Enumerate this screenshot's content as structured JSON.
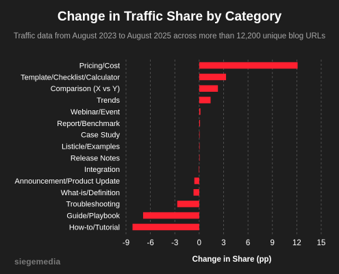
{
  "colors": {
    "background": "#1e1e1e",
    "bar": "#ff2030",
    "grid": "#5a5a5a",
    "text": "#ffffff",
    "subtitle": "#a6a6a6",
    "brand": "#7a7a7a"
  },
  "brand": "siegemedia",
  "chart_data": {
    "type": "bar",
    "orientation": "horizontal",
    "title": "Change in Traffic Share by Category",
    "subtitle": "Traffic data from August 2023 to August 2025 across more than 12,200 unique blog URLs",
    "xlabel": "Change in Share (pp)",
    "ylabel": "",
    "xlim": [
      -9,
      15
    ],
    "xticks": [
      "-9",
      "-6",
      "-3",
      "0",
      "3",
      "6",
      "9",
      "12",
      "15"
    ],
    "xtick_values": [
      -9,
      -6,
      -3,
      0,
      3,
      6,
      9,
      12,
      15
    ],
    "grid": "vertical dashed",
    "categories": [
      "Pricing/Cost",
      "Template/Checklist/Calculator",
      "Comparison (X vs Y)",
      "Trends",
      "Webinar/Event",
      "Report/Benchmark",
      "Case Study",
      "Listicle/Examples",
      "Release Notes",
      "Integration",
      "Announcement/Product Update",
      "What-is/Definition",
      "Troubleshooting",
      "Guide/Playbook",
      "How-to/Tutorial"
    ],
    "values": [
      12.1,
      3.3,
      2.3,
      1.4,
      0.15,
      0.1,
      0.05,
      0.02,
      0.01,
      -0.05,
      -0.6,
      -0.7,
      -2.7,
      -6.9,
      -8.2
    ]
  }
}
